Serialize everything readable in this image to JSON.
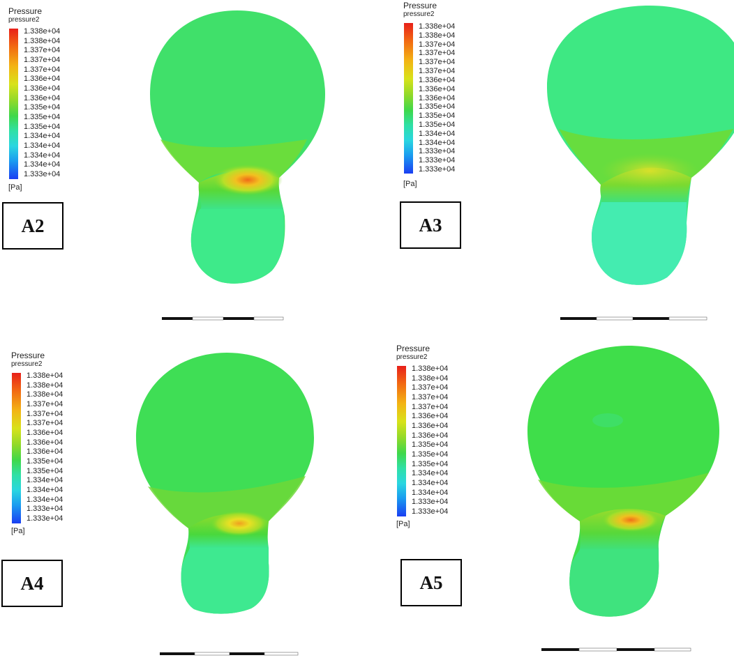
{
  "legend": {
    "title": "Pressure",
    "subtitle": "pressure2",
    "unit": "[Pa]",
    "ticks": [
      "1.338e+04",
      "1.338e+04",
      "1.337e+04",
      "1.337e+04",
      "1.337e+04",
      "1.337e+04",
      "1.336e+04",
      "1.336e+04",
      "1.335e+04",
      "1.335e+04",
      "1.335e+04",
      "1.334e+04",
      "1.334e+04",
      "1.334e+04",
      "1.333e+04",
      "1.333e+04",
      "1.333e+04"
    ]
  },
  "panels": [
    {
      "label": "A2",
      "legend_ticks": [
        "1.338e+04",
        "1.338e+04",
        "1.337e+04",
        "1.337e+04",
        "1.337e+04",
        "1.336e+04",
        "1.336e+04",
        "1.336e+04",
        "1.335e+04",
        "1.335e+04",
        "1.335e+04",
        "1.334e+04",
        "1.334e+04",
        "1.334e+04",
        "1.334e+04",
        "1.333e+04"
      ]
    },
    {
      "label": "A3",
      "legend_ticks": [
        "1.338e+04",
        "1.338e+04",
        "1.337e+04",
        "1.337e+04",
        "1.337e+04",
        "1.337e+04",
        "1.336e+04",
        "1.336e+04",
        "1.336e+04",
        "1.335e+04",
        "1.335e+04",
        "1.335e+04",
        "1.334e+04",
        "1.334e+04",
        "1.333e+04",
        "1.333e+04",
        "1.333e+04"
      ]
    },
    {
      "label": "A4",
      "legend_ticks": [
        "1.338e+04",
        "1.338e+04",
        "1.338e+04",
        "1.337e+04",
        "1.337e+04",
        "1.337e+04",
        "1.336e+04",
        "1.336e+04",
        "1.336e+04",
        "1.335e+04",
        "1.335e+04",
        "1.334e+04",
        "1.334e+04",
        "1.334e+04",
        "1.333e+04",
        "1.333e+04"
      ]
    },
    {
      "label": "A5",
      "legend_ticks": [
        "1.338e+04",
        "1.338e+04",
        "1.337e+04",
        "1.337e+04",
        "1.337e+04",
        "1.336e+04",
        "1.336e+04",
        "1.336e+04",
        "1.335e+04",
        "1.335e+04",
        "1.335e+04",
        "1.334e+04",
        "1.334e+04",
        "1.334e+04",
        "1.333e+04",
        "1.333e+04"
      ]
    }
  ],
  "colors": {
    "max": "#e8201a",
    "mid": "#3fd84a",
    "min": "#1a3ef2",
    "body_green": "#3ee35a",
    "body_aqua": "#35f08e",
    "hotspot": "#f0b020"
  }
}
